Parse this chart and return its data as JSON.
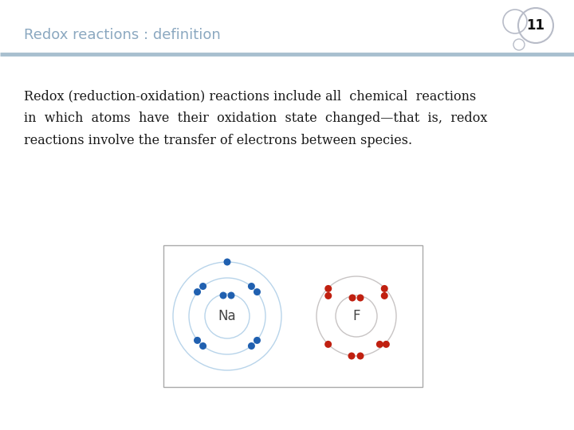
{
  "title": "Redox reactions : definition",
  "slide_number": "11",
  "bg_color": "#ffffff",
  "title_color": "#8ba8c0",
  "title_fontsize": 13,
  "body_text": [
    "Redox (reduction-oxidation) reactions include all  chemical  reactions",
    "in  which  atoms  have  their  oxidation  state  changed—that  is,  redox",
    "reactions involve the transfer of electrons between species."
  ],
  "body_fontsize": 11.5,
  "body_color": "#1a1a1a",
  "line_color": "#a8bfcf",
  "na_label": "Na",
  "f_label": "F",
  "electron_blue": "#2060b0",
  "electron_red": "#c02010",
  "orbit_color_na": "#b8d4ea",
  "orbit_color_f": "#c8c4c4",
  "circle_edge": "#b8bcc8"
}
